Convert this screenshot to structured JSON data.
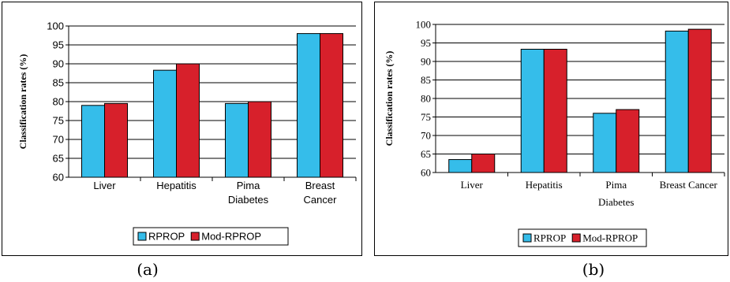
{
  "colors": {
    "rprop": "#35BDEA",
    "mod_rprop": "#D7202B"
  },
  "captions": {
    "a": "(a)",
    "b": "(b)"
  },
  "chart_data": [
    {
      "type": "bar",
      "panel": "a",
      "title": "",
      "xlabel": "",
      "ylabel": "Classification rates (%)",
      "ylim": [
        60,
        100
      ],
      "yticks": [
        60,
        65,
        70,
        75,
        80,
        85,
        90,
        95,
        100
      ],
      "grid": true,
      "legend": "bottom",
      "categories": [
        [
          "Liver"
        ],
        [
          "Hepatitis"
        ],
        [
          "Pima",
          "Diabetes"
        ],
        [
          "Breast",
          "Cancer"
        ]
      ],
      "series": [
        {
          "name": "RPROP",
          "values": [
            79,
            88.3,
            79.5,
            98
          ]
        },
        {
          "name": "Mod-RPROP",
          "values": [
            79.5,
            90,
            80,
            98
          ]
        }
      ]
    },
    {
      "type": "bar",
      "panel": "b",
      "title": "",
      "xlabel": "",
      "ylabel": "Classification rates (%)",
      "ylim": [
        60,
        100
      ],
      "yticks": [
        60,
        65,
        70,
        75,
        80,
        85,
        90,
        95,
        100
      ],
      "grid": true,
      "legend": "bottom",
      "categories": [
        [
          "Liver"
        ],
        [
          "Hepatitis"
        ],
        [
          "Pima",
          "Diabetes"
        ],
        [
          "Breast Cancer"
        ]
      ],
      "series": [
        {
          "name": "RPROP",
          "values": [
            63.5,
            93.3,
            76,
            98.2
          ]
        },
        {
          "name": "Mod-RPROP",
          "values": [
            65,
            93.3,
            77,
            98.7
          ]
        }
      ]
    }
  ]
}
